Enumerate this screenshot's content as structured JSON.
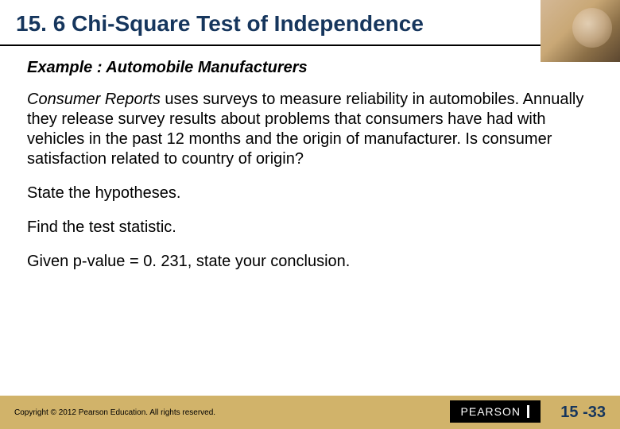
{
  "title": "15. 6 Chi-Square Test of Independence",
  "exampleTitle": "Example : Automobile Manufacturers",
  "para1_italic": "Consumer Reports",
  "para1_rest": " uses surveys to measure reliability in automobiles.  Annually they release survey results about problems that consumers have had with vehicles in the past 12 months and the origin of manufacturer.  Is consumer satisfaction related to country of origin?",
  "para2": "State the hypotheses.",
  "para3": "Find the test statistic.",
  "para4": "Given p-value = 0. 231, state your conclusion.",
  "copyright": "Copyright © 2012  Pearson Education. All rights reserved.",
  "pearsonBrand": "PEARSON",
  "pageNum": "15 -33",
  "colors": {
    "titleColor": "#16365d",
    "footerBg": "#d1b36a",
    "pageNumColor": "#16365d"
  }
}
